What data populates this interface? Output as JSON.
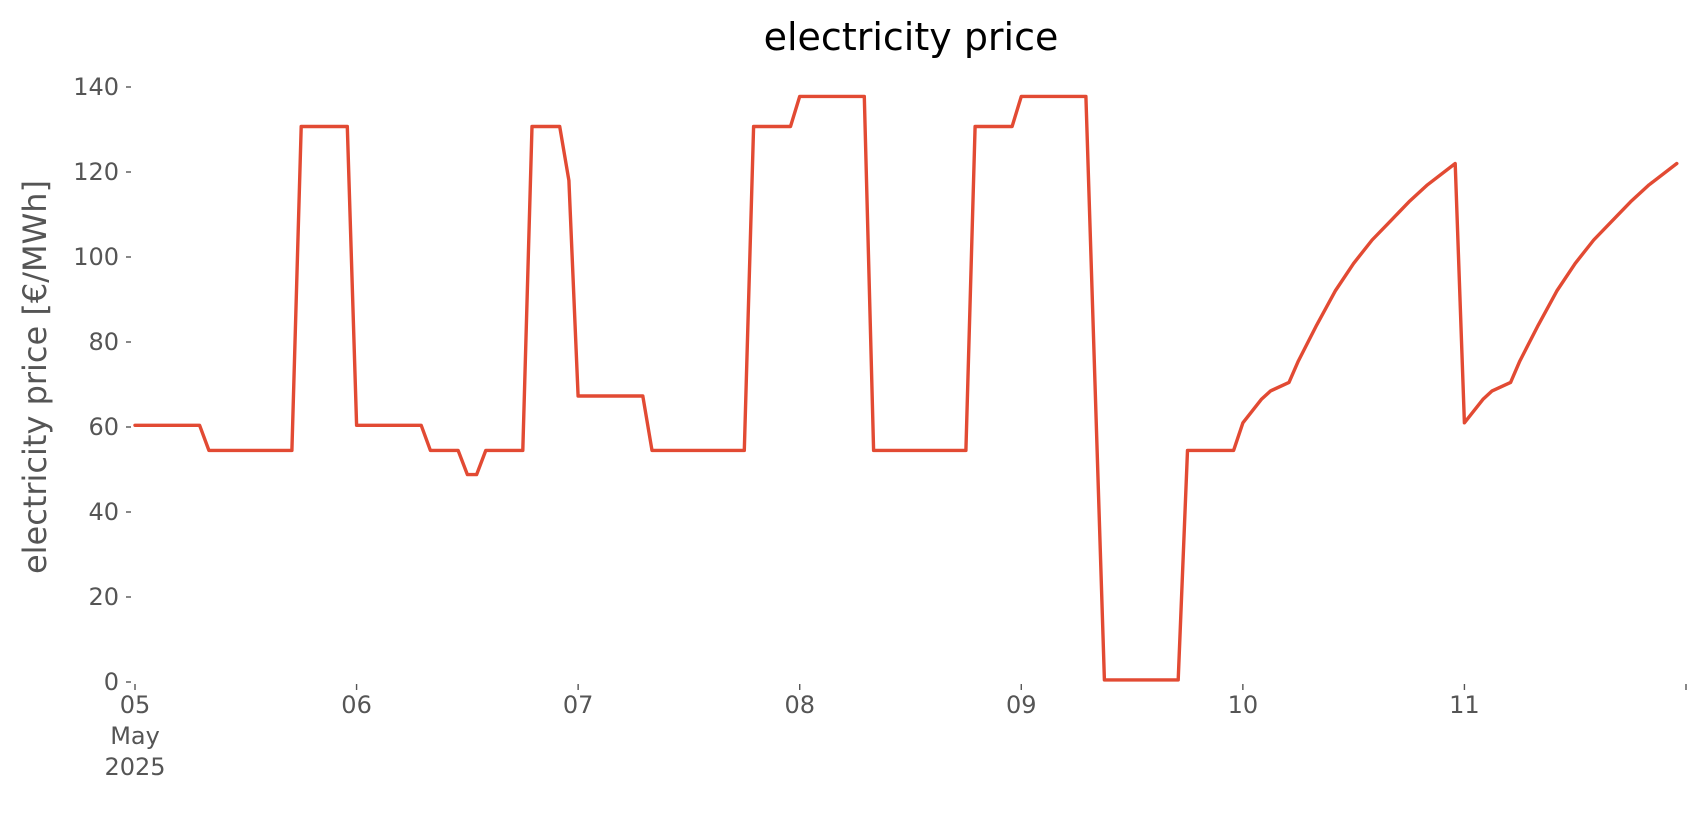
{
  "chart_data": {
    "type": "line",
    "title": "electricity price",
    "xlabel": "",
    "ylabel": "electricity price [€/MWh]",
    "ylim": [
      0,
      140
    ],
    "yticks": [
      0,
      20,
      40,
      60,
      80,
      100,
      120,
      140
    ],
    "xlim": [
      "2025-05-05T00:00",
      "2025-05-12T00:00"
    ],
    "xticks": [
      {
        "x": "2025-05-05T00:00",
        "lines": [
          "05",
          "May",
          "2025"
        ]
      },
      {
        "x": "2025-05-06T00:00",
        "lines": [
          "06"
        ]
      },
      {
        "x": "2025-05-07T00:00",
        "lines": [
          "07"
        ]
      },
      {
        "x": "2025-05-08T00:00",
        "lines": [
          "08"
        ]
      },
      {
        "x": "2025-05-09T00:00",
        "lines": [
          "09"
        ]
      },
      {
        "x": "2025-05-10T00:00",
        "lines": [
          "10"
        ]
      },
      {
        "x": "2025-05-11T00:00",
        "lines": [
          "11"
        ]
      },
      {
        "x": "2025-05-12T00:00",
        "lines": [
          ""
        ]
      }
    ],
    "grid": false,
    "legend": "none",
    "series": [
      {
        "color": "#e24a33",
        "points": [
          [
            "2025-05-05T00:00",
            60.4
          ],
          [
            "2025-05-05T07:00",
            60.4
          ],
          [
            "2025-05-05T08:00",
            54.5
          ],
          [
            "2025-05-05T17:00",
            54.5
          ],
          [
            "2025-05-05T18:00",
            130.7
          ],
          [
            "2025-05-05T23:00",
            130.7
          ],
          [
            "2025-05-06T00:00",
            60.4
          ],
          [
            "2025-05-06T07:00",
            60.4
          ],
          [
            "2025-05-06T08:00",
            54.5
          ],
          [
            "2025-05-06T11:00",
            54.5
          ],
          [
            "2025-05-06T12:00",
            48.8
          ],
          [
            "2025-05-06T13:00",
            48.8
          ],
          [
            "2025-05-06T14:00",
            54.5
          ],
          [
            "2025-05-06T18:00",
            54.5
          ],
          [
            "2025-05-06T19:00",
            130.7
          ],
          [
            "2025-05-06T22:00",
            130.7
          ],
          [
            "2025-05-06T23:00",
            118.0
          ],
          [
            "2025-05-07T00:00",
            67.3
          ],
          [
            "2025-05-07T07:00",
            67.3
          ],
          [
            "2025-05-07T08:00",
            54.5
          ],
          [
            "2025-05-07T18:00",
            54.5
          ],
          [
            "2025-05-07T19:00",
            130.7
          ],
          [
            "2025-05-07T23:00",
            130.7
          ],
          [
            "2025-05-08T00:00",
            137.8
          ],
          [
            "2025-05-08T07:00",
            137.8
          ],
          [
            "2025-05-08T08:00",
            54.5
          ],
          [
            "2025-05-08T18:00",
            54.5
          ],
          [
            "2025-05-08T19:00",
            130.7
          ],
          [
            "2025-05-08T23:00",
            130.7
          ],
          [
            "2025-05-09T00:00",
            137.8
          ],
          [
            "2025-05-09T07:00",
            137.8
          ],
          [
            "2025-05-09T09:00",
            0.5
          ],
          [
            "2025-05-09T17:00",
            0.5
          ],
          [
            "2025-05-09T18:00",
            54.5
          ],
          [
            "2025-05-09T23:00",
            54.5
          ],
          [
            "2025-05-10T00:00",
            61.0
          ],
          [
            "2025-05-10T02:00",
            66.5
          ],
          [
            "2025-05-10T03:00",
            68.5
          ],
          [
            "2025-05-10T05:00",
            70.5
          ],
          [
            "2025-05-10T06:00",
            75.5
          ],
          [
            "2025-05-10T08:00",
            84.0
          ],
          [
            "2025-05-10T10:00",
            92.0
          ],
          [
            "2025-05-10T12:00",
            98.5
          ],
          [
            "2025-05-10T14:00",
            104.0
          ],
          [
            "2025-05-10T16:00",
            108.5
          ],
          [
            "2025-05-10T18:00",
            113.0
          ],
          [
            "2025-05-10T20:00",
            117.0
          ],
          [
            "2025-05-10T23:00",
            122.0
          ],
          [
            "2025-05-11T00:00",
            61.0
          ],
          [
            "2025-05-11T02:00",
            66.5
          ],
          [
            "2025-05-11T03:00",
            68.5
          ],
          [
            "2025-05-11T05:00",
            70.5
          ],
          [
            "2025-05-11T06:00",
            75.5
          ],
          [
            "2025-05-11T08:00",
            84.0
          ],
          [
            "2025-05-11T10:00",
            92.0
          ],
          [
            "2025-05-11T12:00",
            98.5
          ],
          [
            "2025-05-11T14:00",
            104.0
          ],
          [
            "2025-05-11T16:00",
            108.5
          ],
          [
            "2025-05-11T18:00",
            113.0
          ],
          [
            "2025-05-11T20:00",
            117.0
          ],
          [
            "2025-05-11T23:00",
            122.0
          ]
        ]
      }
    ]
  }
}
